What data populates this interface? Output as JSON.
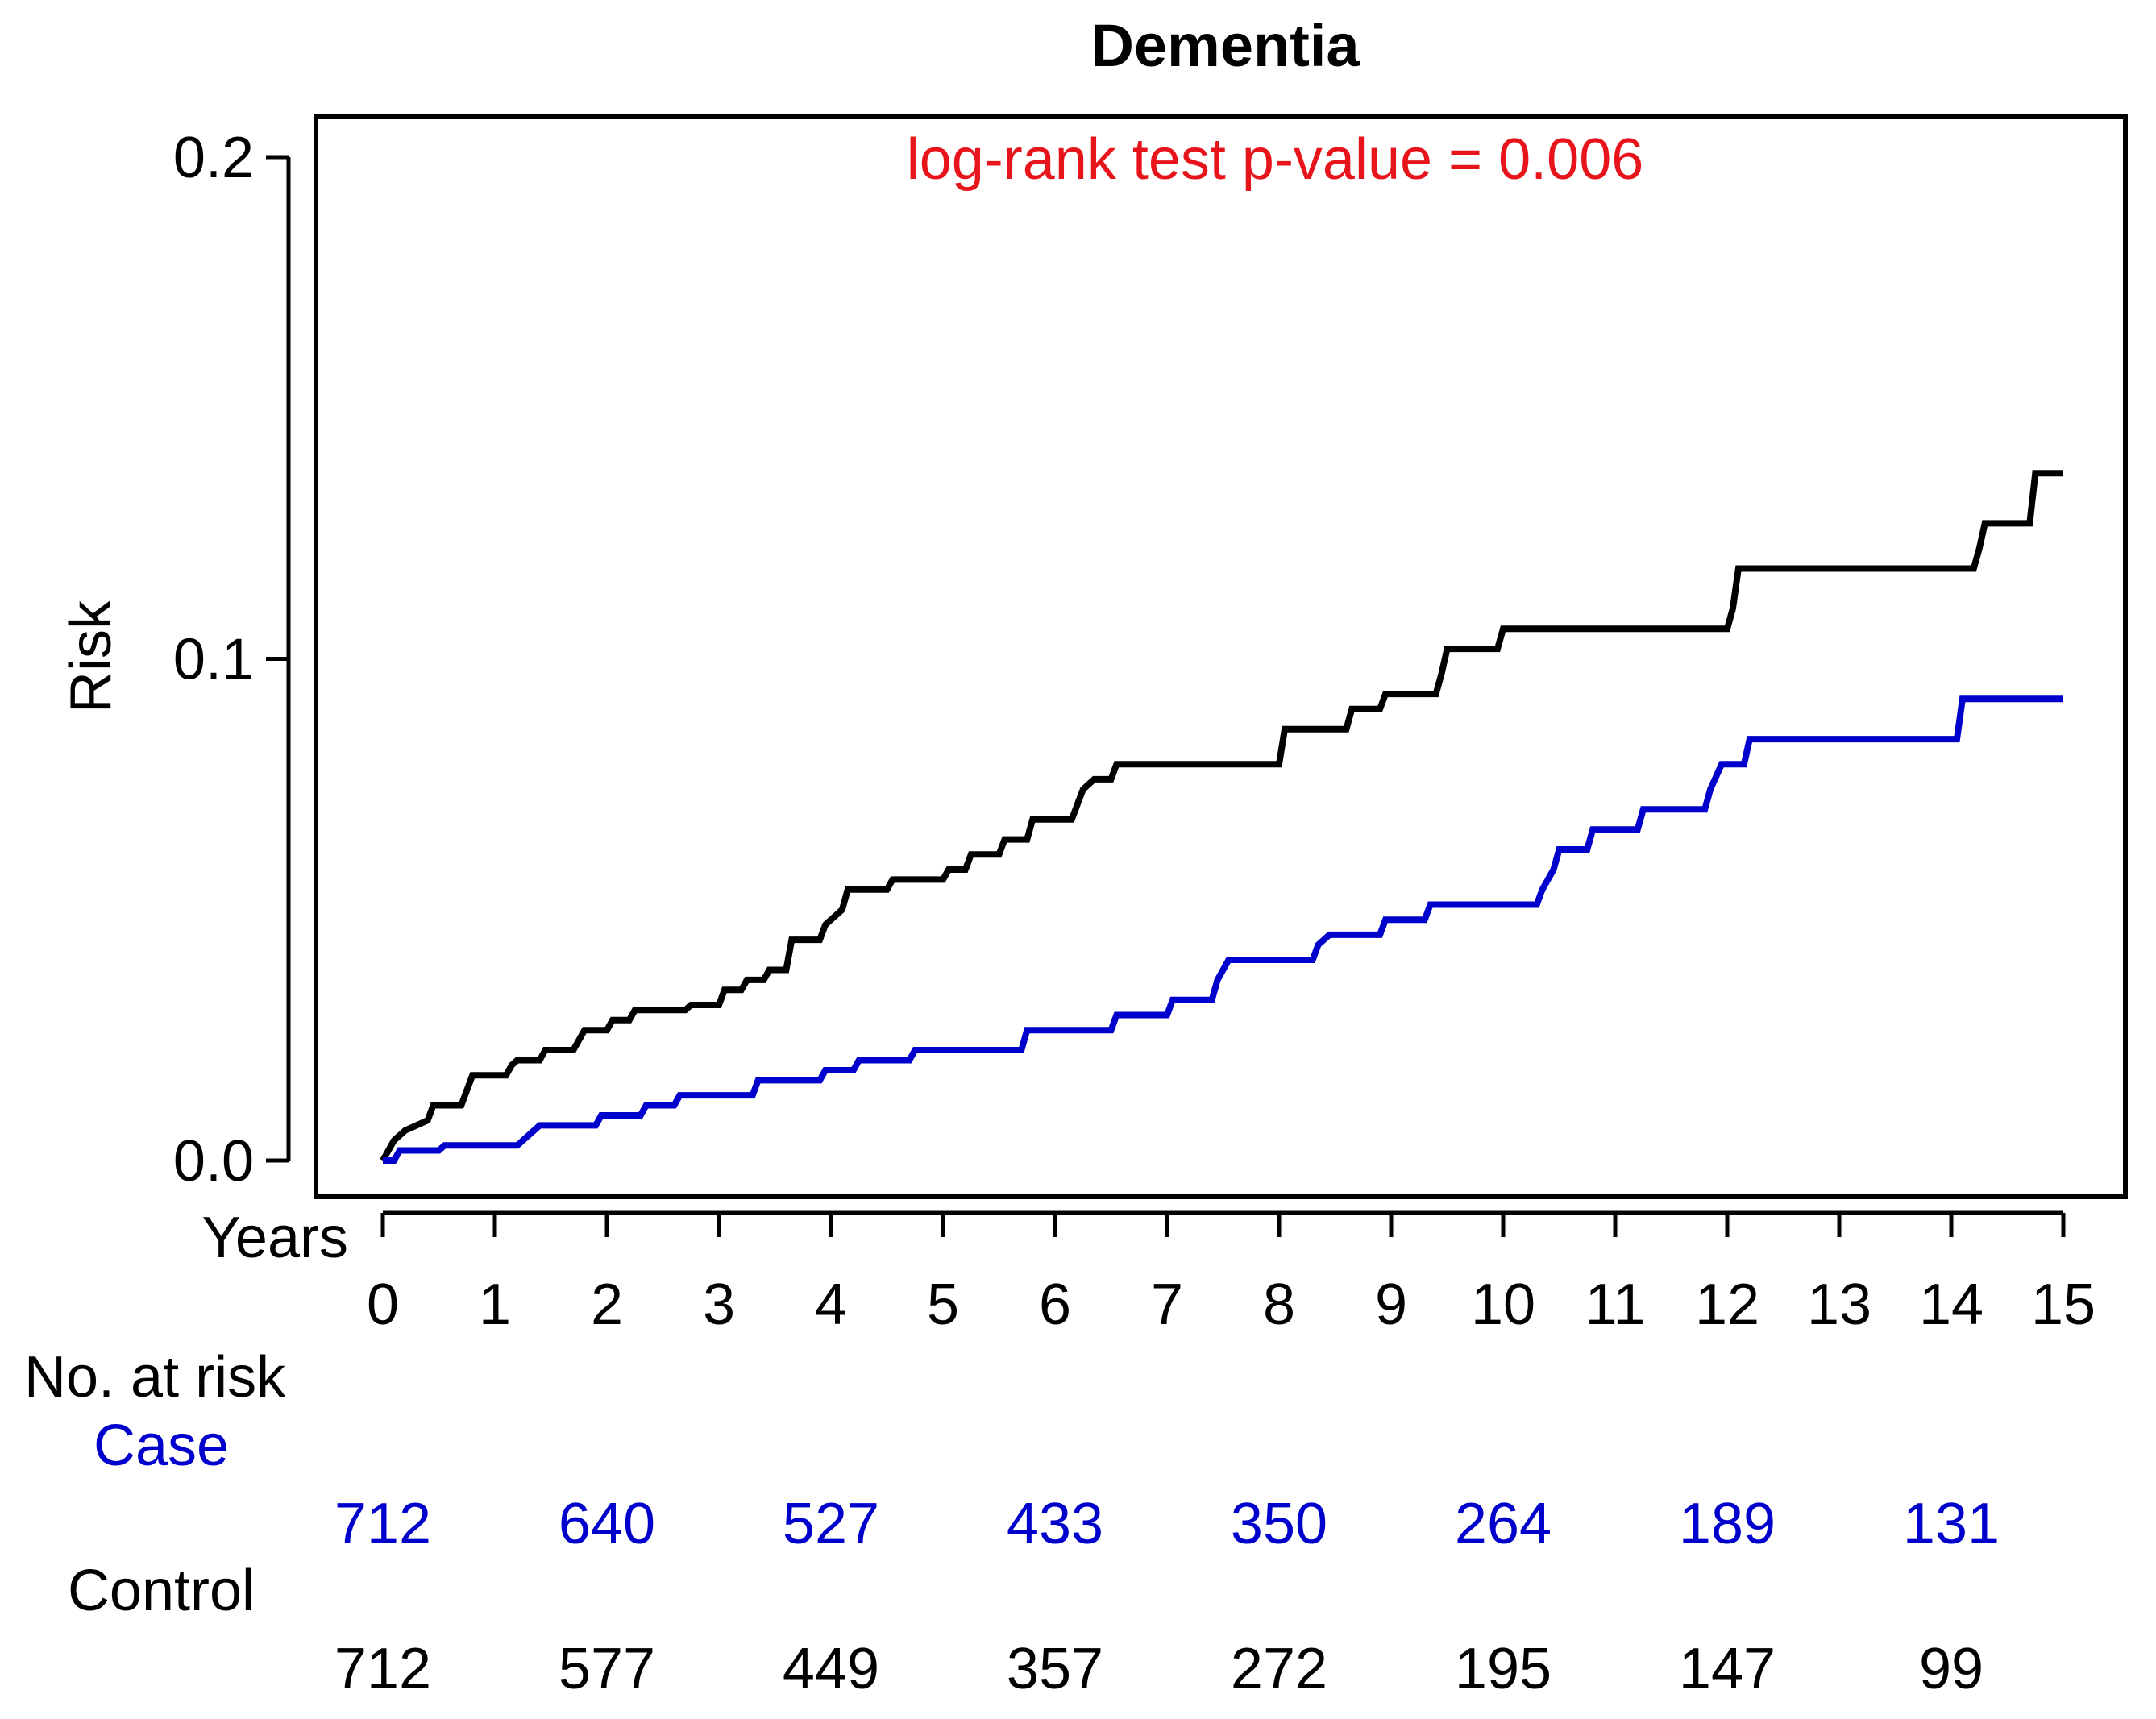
{
  "chart_data": {
    "type": "line",
    "chart_kind": "kaplan-meier cumulative risk (step)",
    "title": "Dementia",
    "annotation": "log-rank test p-value = 0.006",
    "xlabel": "Years",
    "ylabel": "Risk",
    "xlim": [
      0,
      15
    ],
    "ylim": [
      0,
      0.2
    ],
    "x_ticks": [
      "0",
      "1",
      "2",
      "3",
      "4",
      "5",
      "6",
      "7",
      "8",
      "9",
      "10",
      "11",
      "12",
      "13",
      "14",
      "15"
    ],
    "y_ticks": [
      "0.0",
      "0.1",
      "0.2"
    ],
    "series": [
      {
        "name": "Control",
        "color": "#000000",
        "points": [
          [
            0,
            0
          ],
          [
            0.05,
            0.002
          ],
          [
            0.1,
            0.004
          ],
          [
            0.2,
            0.006
          ],
          [
            0.4,
            0.008
          ],
          [
            0.45,
            0.011
          ],
          [
            0.7,
            0.011
          ],
          [
            0.75,
            0.014
          ],
          [
            0.8,
            0.017
          ],
          [
            1.1,
            0.017
          ],
          [
            1.15,
            0.019
          ],
          [
            1.2,
            0.02
          ],
          [
            1.4,
            0.02
          ],
          [
            1.45,
            0.022
          ],
          [
            1.7,
            0.022
          ],
          [
            1.75,
            0.024
          ],
          [
            1.8,
            0.026
          ],
          [
            2.0,
            0.026
          ],
          [
            2.05,
            0.028
          ],
          [
            2.2,
            0.028
          ],
          [
            2.25,
            0.03
          ],
          [
            2.7,
            0.03
          ],
          [
            2.75,
            0.031
          ],
          [
            3.0,
            0.031
          ],
          [
            3.05,
            0.034
          ],
          [
            3.2,
            0.034
          ],
          [
            3.25,
            0.036
          ],
          [
            3.4,
            0.036
          ],
          [
            3.45,
            0.038
          ],
          [
            3.6,
            0.038
          ],
          [
            3.65,
            0.044
          ],
          [
            3.9,
            0.044
          ],
          [
            3.95,
            0.047
          ],
          [
            4.1,
            0.05
          ],
          [
            4.15,
            0.054
          ],
          [
            4.5,
            0.054
          ],
          [
            4.55,
            0.056
          ],
          [
            5.0,
            0.056
          ],
          [
            5.05,
            0.058
          ],
          [
            5.2,
            0.058
          ],
          [
            5.25,
            0.061
          ],
          [
            5.5,
            0.061
          ],
          [
            5.55,
            0.064
          ],
          [
            5.75,
            0.064
          ],
          [
            5.8,
            0.068
          ],
          [
            6.15,
            0.068
          ],
          [
            6.2,
            0.071
          ],
          [
            6.25,
            0.074
          ],
          [
            6.35,
            0.076
          ],
          [
            6.5,
            0.076
          ],
          [
            6.55,
            0.079
          ],
          [
            8.0,
            0.079
          ],
          [
            8.05,
            0.086
          ],
          [
            8.6,
            0.086
          ],
          [
            8.65,
            0.09
          ],
          [
            8.9,
            0.09
          ],
          [
            8.95,
            0.093
          ],
          [
            9.4,
            0.093
          ],
          [
            9.45,
            0.097
          ],
          [
            9.5,
            0.102
          ],
          [
            9.95,
            0.102
          ],
          [
            10.0,
            0.106
          ],
          [
            12.0,
            0.106
          ],
          [
            12.05,
            0.11
          ],
          [
            12.1,
            0.118
          ],
          [
            14.2,
            0.118
          ],
          [
            14.25,
            0.122
          ],
          [
            14.3,
            0.127
          ],
          [
            14.7,
            0.127
          ],
          [
            14.75,
            0.137
          ],
          [
            15.0,
            0.137
          ]
        ]
      },
      {
        "name": "Case",
        "color": "#0000CC",
        "points": [
          [
            0,
            0
          ],
          [
            0.1,
            0.0
          ],
          [
            0.15,
            0.002
          ],
          [
            0.5,
            0.002
          ],
          [
            0.55,
            0.003
          ],
          [
            1.2,
            0.003
          ],
          [
            1.3,
            0.005
          ],
          [
            1.4,
            0.007
          ],
          [
            1.9,
            0.007
          ],
          [
            1.95,
            0.009
          ],
          [
            2.3,
            0.009
          ],
          [
            2.35,
            0.011
          ],
          [
            2.6,
            0.011
          ],
          [
            2.65,
            0.013
          ],
          [
            3.3,
            0.013
          ],
          [
            3.35,
            0.016
          ],
          [
            3.9,
            0.016
          ],
          [
            3.95,
            0.018
          ],
          [
            4.2,
            0.018
          ],
          [
            4.25,
            0.02
          ],
          [
            4.7,
            0.02
          ],
          [
            4.75,
            0.022
          ],
          [
            5.7,
            0.022
          ],
          [
            5.75,
            0.026
          ],
          [
            6.5,
            0.026
          ],
          [
            6.55,
            0.029
          ],
          [
            7.0,
            0.029
          ],
          [
            7.05,
            0.032
          ],
          [
            7.4,
            0.032
          ],
          [
            7.45,
            0.036
          ],
          [
            7.55,
            0.04
          ],
          [
            8.3,
            0.04
          ],
          [
            8.35,
            0.043
          ],
          [
            8.45,
            0.045
          ],
          [
            8.9,
            0.045
          ],
          [
            8.95,
            0.048
          ],
          [
            9.3,
            0.048
          ],
          [
            9.35,
            0.051
          ],
          [
            10.3,
            0.051
          ],
          [
            10.35,
            0.054
          ],
          [
            10.45,
            0.058
          ],
          [
            10.5,
            0.062
          ],
          [
            10.75,
            0.062
          ],
          [
            10.8,
            0.066
          ],
          [
            11.2,
            0.066
          ],
          [
            11.25,
            0.07
          ],
          [
            11.8,
            0.07
          ],
          [
            11.85,
            0.074
          ],
          [
            11.95,
            0.079
          ],
          [
            12.15,
            0.079
          ],
          [
            12.2,
            0.084
          ],
          [
            14.05,
            0.084
          ],
          [
            14.1,
            0.092
          ],
          [
            15.0,
            0.092
          ]
        ]
      }
    ],
    "risk_table": {
      "header": "No. at risk",
      "years": [
        0,
        2,
        4,
        6,
        8,
        10,
        12,
        14
      ],
      "rows": [
        {
          "label": "Case",
          "color": "#0000CC",
          "values": [
            "712",
            "640",
            "527",
            "433",
            "350",
            "264",
            "189",
            "131"
          ]
        },
        {
          "label": "Control",
          "color": "#000000",
          "values": [
            "712",
            "577",
            "449",
            "357",
            "272",
            "195",
            "147",
            "99"
          ]
        }
      ]
    }
  }
}
